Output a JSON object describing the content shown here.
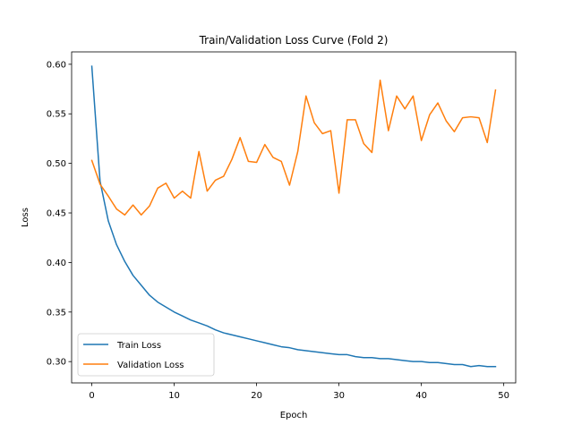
{
  "chart_data": {
    "type": "line",
    "title": "Train/Validation Loss Curve (Fold 2)",
    "xlabel": "Epoch",
    "ylabel": "Loss",
    "xlim": [
      -2.45,
      51.45
    ],
    "ylim": [
      0.2785,
      0.6125
    ],
    "xticks": [
      0,
      10,
      20,
      30,
      40,
      50
    ],
    "yticks": [
      0.3,
      0.35,
      0.4,
      0.45,
      0.5,
      0.55,
      0.6
    ],
    "grid": false,
    "legend_position": "lower-left",
    "series": [
      {
        "name": "Train Loss",
        "color": "#1f77b4",
        "x": [
          0,
          1,
          2,
          3,
          4,
          5,
          6,
          7,
          8,
          9,
          10,
          11,
          12,
          13,
          14,
          15,
          16,
          17,
          18,
          19,
          20,
          21,
          22,
          23,
          24,
          25,
          26,
          27,
          28,
          29,
          30,
          31,
          32,
          33,
          34,
          35,
          36,
          37,
          38,
          39,
          40,
          41,
          42,
          43,
          44,
          45,
          46,
          47,
          48,
          49
        ],
        "values": [
          0.598,
          0.482,
          0.442,
          0.418,
          0.401,
          0.387,
          0.377,
          0.367,
          0.36,
          0.355,
          0.35,
          0.346,
          0.342,
          0.339,
          0.336,
          0.332,
          0.329,
          0.327,
          0.325,
          0.323,
          0.321,
          0.319,
          0.317,
          0.315,
          0.314,
          0.312,
          0.311,
          0.31,
          0.309,
          0.308,
          0.307,
          0.307,
          0.305,
          0.304,
          0.304,
          0.303,
          0.303,
          0.302,
          0.301,
          0.3,
          0.3,
          0.299,
          0.299,
          0.298,
          0.297,
          0.297,
          0.295,
          0.296,
          0.295,
          0.295
        ]
      },
      {
        "name": "Validation Loss",
        "color": "#ff7f0e",
        "x": [
          0,
          1,
          2,
          3,
          4,
          5,
          6,
          7,
          8,
          9,
          10,
          11,
          12,
          13,
          14,
          15,
          16,
          17,
          18,
          19,
          20,
          21,
          22,
          23,
          24,
          25,
          26,
          27,
          28,
          29,
          30,
          31,
          32,
          33,
          34,
          35,
          36,
          37,
          38,
          39,
          40,
          41,
          42,
          43,
          44,
          45,
          46,
          47,
          48,
          49
        ],
        "values": [
          0.503,
          0.479,
          0.467,
          0.454,
          0.448,
          0.458,
          0.448,
          0.457,
          0.475,
          0.48,
          0.465,
          0.472,
          0.465,
          0.512,
          0.472,
          0.483,
          0.487,
          0.504,
          0.526,
          0.502,
          0.501,
          0.519,
          0.506,
          0.502,
          0.478,
          0.512,
          0.568,
          0.541,
          0.53,
          0.533,
          0.47,
          0.544,
          0.544,
          0.52,
          0.511,
          0.584,
          0.533,
          0.568,
          0.555,
          0.568,
          0.523,
          0.549,
          0.561,
          0.543,
          0.532,
          0.546,
          0.547,
          0.546,
          0.521,
          0.574
        ]
      }
    ]
  }
}
